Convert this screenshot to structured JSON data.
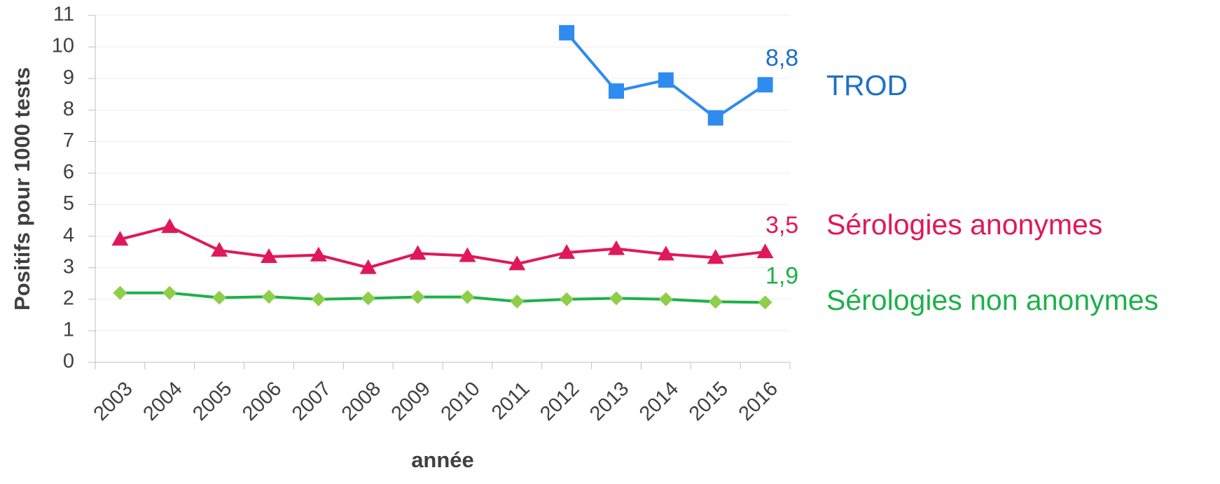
{
  "chart_data": {
    "type": "line",
    "x_label": "année",
    "y_label": "Positifs pour 1000 tests",
    "categories": [
      "2003",
      "2004",
      "2005",
      "2006",
      "2007",
      "2008",
      "2009",
      "2010",
      "2011",
      "2012",
      "2013",
      "2014",
      "2015",
      "2016"
    ],
    "series": [
      {
        "name": "TROD",
        "color": "#2e8bf0",
        "label_color": "#1f6fc8",
        "marker": "square",
        "marker_color": "#2e8bf0",
        "values": [
          null,
          null,
          null,
          null,
          null,
          null,
          null,
          null,
          null,
          10.45,
          8.6,
          8.95,
          7.75,
          8.8
        ],
        "value_labels": [
          null,
          null,
          null,
          null,
          null,
          null,
          null,
          null,
          null,
          null,
          null,
          null,
          null,
          "8,8"
        ]
      },
      {
        "name": "Sérologies anonymes",
        "color": "#e0185a",
        "label_color": "#e0185a",
        "marker": "triangle",
        "marker_color": "#e0185a",
        "values": [
          3.9,
          4.3,
          3.55,
          3.35,
          3.4,
          3.0,
          3.45,
          3.38,
          3.12,
          3.48,
          3.6,
          3.43,
          3.32,
          3.5
        ],
        "value_labels": [
          null,
          null,
          null,
          null,
          null,
          null,
          null,
          null,
          null,
          null,
          null,
          null,
          null,
          "3,5"
        ]
      },
      {
        "name": "Sérologies non anonymes",
        "color": "#1db14a",
        "label_color": "#1db14a",
        "marker": "diamond",
        "marker_color": "#8fce4a",
        "values": [
          2.2,
          2.2,
          2.05,
          2.08,
          2.0,
          2.03,
          2.07,
          2.07,
          1.93,
          2.0,
          2.03,
          2.0,
          1.92,
          1.9
        ],
        "value_labels": [
          null,
          null,
          null,
          null,
          null,
          null,
          null,
          null,
          null,
          null,
          null,
          null,
          null,
          "1,9"
        ]
      }
    ],
    "ylim": [
      0,
      11
    ],
    "yticks": [
      0,
      1,
      2,
      3,
      4,
      5,
      6,
      7,
      8,
      9,
      10,
      11
    ],
    "grid": true
  }
}
